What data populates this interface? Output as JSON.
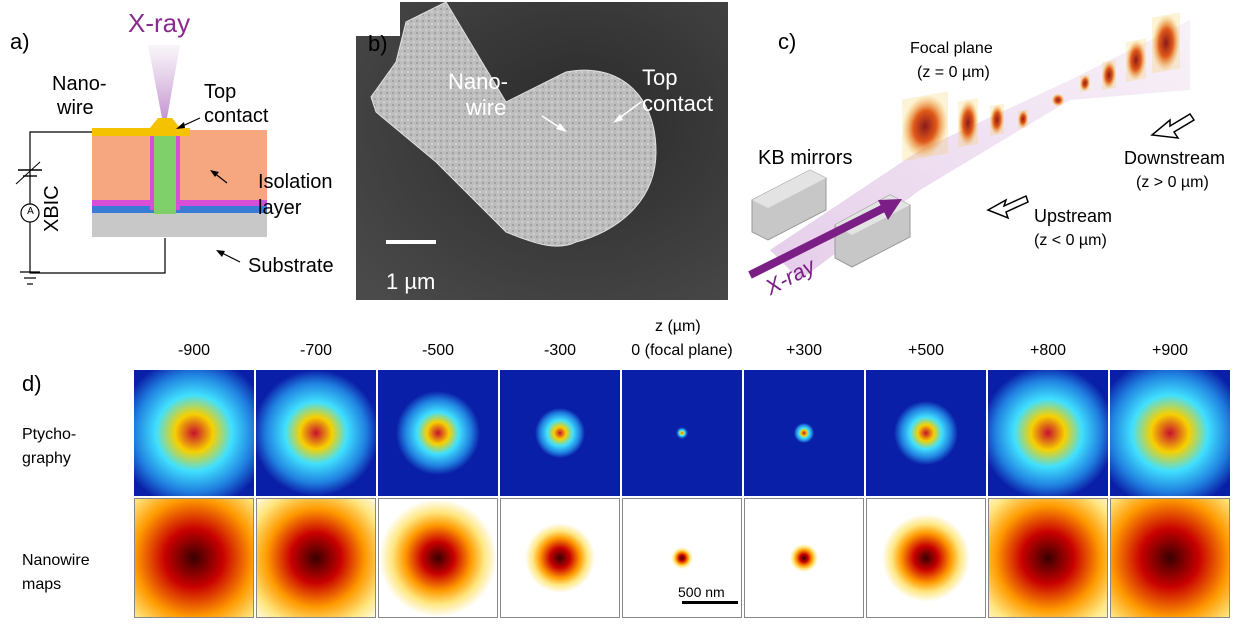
{
  "panel_a": {
    "label": "a)",
    "xray": "X-ray",
    "nanowire_line1": "Nano-",
    "nanowire_line2": "wire",
    "top_contact_line1": "Top",
    "top_contact_line2": "contact",
    "isolation_line1": "Isolation",
    "isolation_line2": "layer",
    "substrate": "Substrate",
    "xbic": "XBIC",
    "ammeter": "A",
    "colors": {
      "xray": "#8b2b8f",
      "contact": "#f5c200",
      "isolation": "#f6a77f",
      "nanowire": "#7fcf6a",
      "pink": "#d64fd6",
      "blue": "#3a7bd5",
      "substrate": "#c8c8c8"
    }
  },
  "panel_b": {
    "label": "b)",
    "nanowire_line1": "Nano-",
    "nanowire_line2": "wire",
    "top_contact_line1": "Top",
    "top_contact_line2": "contact",
    "scalebar": "1 µm"
  },
  "panel_c": {
    "label": "c)",
    "focal_plane": "Focal plane",
    "focal_z": "(z = 0 µm)",
    "kb_mirrors": "KB mirrors",
    "downstream": "Downstream",
    "downstream_z": "(z > 0 µm)",
    "upstream": "Upstream",
    "upstream_z": "(z < 0 µm)",
    "xray": "X-ray"
  },
  "panel_d": {
    "label": "d)",
    "axis_title": "z (µm)",
    "z_labels": [
      "-900",
      "-700",
      "-500",
      "-300",
      "0 (focal plane)",
      "+300",
      "+500",
      "+800",
      "+900"
    ],
    "row1_line1": "Ptycho-",
    "row1_line2": "graphy",
    "row2_line1": "Nanowire",
    "row2_line2": "maps",
    "scalebar": "500 nm"
  }
}
